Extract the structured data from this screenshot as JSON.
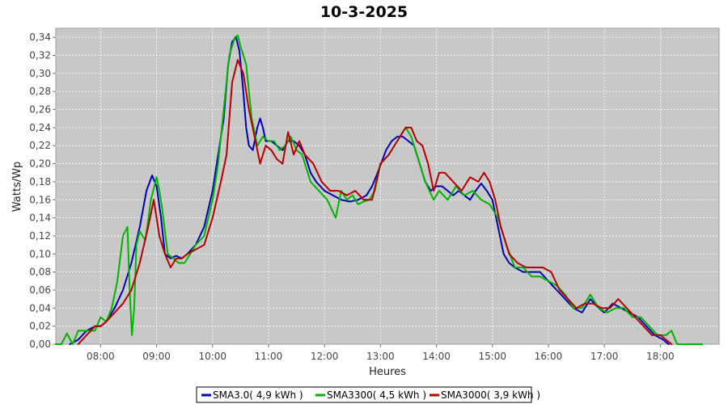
{
  "chart_data": {
    "type": "line",
    "title": "10-3-2025",
    "xlabel": "Heures",
    "ylabel": "Watts/Wp",
    "x_unit": "hour",
    "xlim": [
      7.2,
      19.05
    ],
    "ylim": [
      0,
      0.35
    ],
    "x_ticks": [
      8,
      9,
      10,
      11,
      12,
      13,
      14,
      15,
      16,
      17,
      18
    ],
    "x_tick_labels": [
      "08:00",
      "09:00",
      "10:00",
      "11:00",
      "12:00",
      "13:00",
      "14:00",
      "15:00",
      "16:00",
      "17:00",
      "18:00"
    ],
    "y_ticks": [
      0,
      0.02,
      0.04,
      0.06,
      0.08,
      0.1,
      0.12,
      0.14,
      0.16,
      0.18,
      0.2,
      0.22,
      0.24,
      0.26,
      0.28,
      0.3,
      0.32,
      0.34
    ],
    "y_tick_labels": [
      "0,00",
      "0,02",
      "0,04",
      "0,06",
      "0,08",
      "0,10",
      "0,12",
      "0,14",
      "0,16",
      "0,18",
      "0,20",
      "0,22",
      "0,24",
      "0,26",
      "0,28",
      "0,30",
      "0,32",
      "0,34"
    ],
    "grid": true,
    "legend_position": "bottom",
    "series": [
      {
        "name": "SMA3.0( 4,9 kWh )",
        "color": "#0000b4",
        "x": [
          7.45,
          7.6,
          7.75,
          7.9,
          8.0,
          8.1,
          8.25,
          8.4,
          8.55,
          8.7,
          8.82,
          8.92,
          9.0,
          9.08,
          9.15,
          9.25,
          9.35,
          9.45,
          9.55,
          9.7,
          9.85,
          10.0,
          10.1,
          10.2,
          10.28,
          10.35,
          10.42,
          10.48,
          10.55,
          10.6,
          10.65,
          10.72,
          10.8,
          10.85,
          10.9,
          10.95,
          11.05,
          11.15,
          11.25,
          11.35,
          11.45,
          11.55,
          11.65,
          11.75,
          11.85,
          12.0,
          12.15,
          12.3,
          12.45,
          12.6,
          12.75,
          12.85,
          12.95,
          13.1,
          13.2,
          13.3,
          13.4,
          13.5,
          13.6,
          13.7,
          13.8,
          13.9,
          14.0,
          14.1,
          14.2,
          14.3,
          14.4,
          14.5,
          14.6,
          14.7,
          14.8,
          14.9,
          15.0,
          15.1,
          15.2,
          15.3,
          15.4,
          15.55,
          15.7,
          15.85,
          16.0,
          16.15,
          16.3,
          16.45,
          16.6,
          16.75,
          16.9,
          17.0,
          17.15,
          17.3,
          17.45,
          17.6,
          17.75,
          17.9,
          18.05,
          18.15
        ],
        "values": [
          0.0,
          0.005,
          0.015,
          0.02,
          0.02,
          0.025,
          0.04,
          0.06,
          0.09,
          0.13,
          0.17,
          0.187,
          0.175,
          0.14,
          0.1,
          0.095,
          0.098,
          0.095,
          0.1,
          0.11,
          0.13,
          0.17,
          0.21,
          0.25,
          0.31,
          0.335,
          0.34,
          0.325,
          0.28,
          0.24,
          0.22,
          0.215,
          0.24,
          0.25,
          0.24,
          0.225,
          0.225,
          0.22,
          0.215,
          0.225,
          0.225,
          0.22,
          0.21,
          0.19,
          0.18,
          0.17,
          0.165,
          0.16,
          0.158,
          0.16,
          0.165,
          0.175,
          0.19,
          0.215,
          0.225,
          0.23,
          0.23,
          0.225,
          0.22,
          0.2,
          0.18,
          0.17,
          0.175,
          0.175,
          0.17,
          0.165,
          0.17,
          0.165,
          0.16,
          0.17,
          0.178,
          0.17,
          0.16,
          0.13,
          0.1,
          0.09,
          0.085,
          0.08,
          0.08,
          0.08,
          0.07,
          0.06,
          0.05,
          0.04,
          0.035,
          0.05,
          0.04,
          0.035,
          0.045,
          0.04,
          0.035,
          0.03,
          0.02,
          0.01,
          0.005,
          0.0
        ]
      },
      {
        "name": "SMA3300( 4,5 kWh )",
        "color": "#00b400",
        "x": [
          7.2,
          7.3,
          7.4,
          7.5,
          7.6,
          7.75,
          7.9,
          8.0,
          8.1,
          8.2,
          8.3,
          8.4,
          8.48,
          8.52,
          8.56,
          8.6,
          8.64,
          8.7,
          8.8,
          8.9,
          9.0,
          9.05,
          9.1,
          9.2,
          9.3,
          9.4,
          9.5,
          9.6,
          9.7,
          9.85,
          10.0,
          10.1,
          10.2,
          10.3,
          10.4,
          10.45,
          10.5,
          10.6,
          10.7,
          10.8,
          10.9,
          11.0,
          11.1,
          11.2,
          11.3,
          11.4,
          11.5,
          11.6,
          11.75,
          11.9,
          12.05,
          12.2,
          12.3,
          12.4,
          12.5,
          12.6,
          12.7,
          12.8,
          12.9,
          13.0,
          13.15,
          13.3,
          13.45,
          13.55,
          13.65,
          13.8,
          13.95,
          14.05,
          14.2,
          14.35,
          14.5,
          14.65,
          14.8,
          14.95,
          15.1,
          15.25,
          15.4,
          15.55,
          15.7,
          15.85,
          16.0,
          16.15,
          16.3,
          16.45,
          16.6,
          16.75,
          16.9,
          17.05,
          17.2,
          17.35,
          17.5,
          17.65,
          17.8,
          17.95,
          18.1,
          18.2,
          18.3,
          18.45,
          18.6,
          18.75
        ],
        "values": [
          0.0,
          0.0,
          0.012,
          0.0,
          0.015,
          0.015,
          0.015,
          0.03,
          0.025,
          0.04,
          0.07,
          0.12,
          0.13,
          0.06,
          0.01,
          0.04,
          0.11,
          0.125,
          0.115,
          0.16,
          0.185,
          0.17,
          0.15,
          0.1,
          0.095,
          0.09,
          0.09,
          0.1,
          0.11,
          0.12,
          0.16,
          0.2,
          0.26,
          0.32,
          0.34,
          0.342,
          0.33,
          0.31,
          0.25,
          0.22,
          0.23,
          0.225,
          0.225,
          0.215,
          0.22,
          0.23,
          0.215,
          0.21,
          0.18,
          0.17,
          0.16,
          0.14,
          0.17,
          0.16,
          0.165,
          0.155,
          0.158,
          0.16,
          0.17,
          0.2,
          0.21,
          0.225,
          0.24,
          0.23,
          0.21,
          0.18,
          0.16,
          0.17,
          0.16,
          0.175,
          0.165,
          0.17,
          0.16,
          0.155,
          0.14,
          0.11,
          0.085,
          0.085,
          0.075,
          0.075,
          0.07,
          0.065,
          0.055,
          0.04,
          0.04,
          0.055,
          0.04,
          0.035,
          0.04,
          0.04,
          0.03,
          0.03,
          0.02,
          0.01,
          0.01,
          0.015,
          0.0,
          0.0,
          0.0,
          0.0
        ]
      },
      {
        "name": "SMA3000( 3,9 kWh )",
        "color": "#b40000",
        "x": [
          7.6,
          7.75,
          7.9,
          8.0,
          8.1,
          8.25,
          8.4,
          8.55,
          8.7,
          8.85,
          8.95,
          9.0,
          9.05,
          9.15,
          9.25,
          9.35,
          9.45,
          9.55,
          9.7,
          9.85,
          10.0,
          10.15,
          10.25,
          10.35,
          10.45,
          10.55,
          10.65,
          10.75,
          10.85,
          10.95,
          11.05,
          11.15,
          11.25,
          11.35,
          11.45,
          11.55,
          11.65,
          11.8,
          11.95,
          12.1,
          12.25,
          12.4,
          12.55,
          12.7,
          12.85,
          13.0,
          13.15,
          13.3,
          13.45,
          13.55,
          13.65,
          13.75,
          13.85,
          13.95,
          14.05,
          14.15,
          14.3,
          14.45,
          14.6,
          14.75,
          14.85,
          14.95,
          15.05,
          15.15,
          15.3,
          15.45,
          15.6,
          15.75,
          15.9,
          16.05,
          16.2,
          16.35,
          16.5,
          16.65,
          16.8,
          16.95,
          17.1,
          17.25,
          17.4,
          17.55,
          17.7,
          17.85,
          18.0,
          18.1,
          18.2
        ],
        "values": [
          0.0,
          0.01,
          0.02,
          0.02,
          0.025,
          0.035,
          0.045,
          0.06,
          0.09,
          0.13,
          0.16,
          0.14,
          0.12,
          0.1,
          0.085,
          0.095,
          0.095,
          0.1,
          0.105,
          0.11,
          0.14,
          0.18,
          0.21,
          0.29,
          0.315,
          0.3,
          0.26,
          0.23,
          0.2,
          0.22,
          0.215,
          0.205,
          0.2,
          0.235,
          0.21,
          0.225,
          0.21,
          0.2,
          0.18,
          0.17,
          0.17,
          0.165,
          0.17,
          0.16,
          0.16,
          0.2,
          0.21,
          0.225,
          0.24,
          0.24,
          0.225,
          0.22,
          0.2,
          0.17,
          0.19,
          0.19,
          0.18,
          0.17,
          0.185,
          0.18,
          0.19,
          0.18,
          0.16,
          0.13,
          0.1,
          0.09,
          0.085,
          0.085,
          0.085,
          0.08,
          0.06,
          0.05,
          0.04,
          0.045,
          0.045,
          0.04,
          0.04,
          0.05,
          0.04,
          0.03,
          0.02,
          0.01,
          0.01,
          0.005,
          0.0
        ]
      }
    ]
  }
}
